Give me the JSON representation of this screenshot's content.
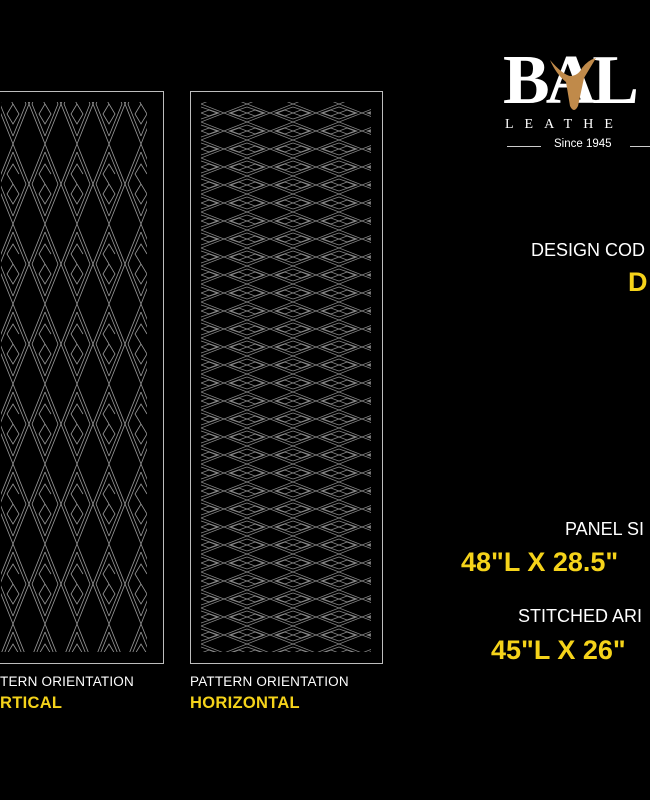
{
  "brand": {
    "logo_text": "BAL",
    "subtitle": "LEATHE",
    "since": "Since 1945",
    "accent_color": "#c08a4a"
  },
  "panels": [
    {
      "orientation_label": "TERN ORIENTATION",
      "orientation_value": "RTICAL"
    },
    {
      "orientation_label": "PATTERN ORIENTATION",
      "orientation_value": "HORIZONTAL"
    }
  ],
  "specs": {
    "design_code_label": "DESIGN COD",
    "design_code_value": "D",
    "panel_size_label": "PANEL SI",
    "panel_size_value": "48\"L X 28.5\"",
    "stitched_area_label": "STITCHED ARI",
    "stitched_area_value": "45\"L X 26\""
  },
  "colors": {
    "highlight": "#f5d31a",
    "background": "#000000",
    "stitch": "#8c8c8c"
  }
}
